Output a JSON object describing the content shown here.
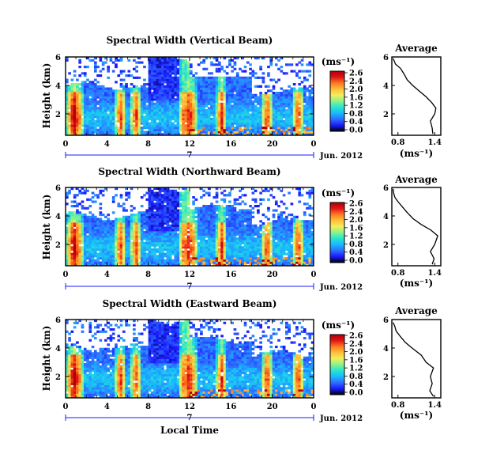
{
  "chart_data": {
    "type": "heatmap",
    "xlabel": "Local Time",
    "date_label": "Jun. 2012",
    "day_label": "7",
    "x_ticks": [
      "0",
      "4",
      "8",
      "12",
      "16",
      "20",
      "0"
    ],
    "y_ticks": [
      "6",
      "4",
      "2"
    ],
    "y_ticks_avg": [
      "6",
      "4",
      "2"
    ],
    "xlim_hours": [
      0,
      24
    ],
    "ylim_km": [
      0.5,
      6
    ],
    "colorbar": {
      "unit": "(ms⁻¹)",
      "ticks": [
        "2.6",
        "2.4",
        "2.0",
        "1.6",
        "1.2",
        "0.8",
        "0.4",
        "0.0"
      ],
      "range": [
        0,
        2.8
      ],
      "colors": [
        "#000000",
        "#1a1aff",
        "#2f6dff",
        "#19b8ff",
        "#25e6d0",
        "#8cf28c",
        "#f0f05a",
        "#ffbf3a",
        "#ff7a1f",
        "#e0151a",
        "#b00000"
      ]
    },
    "avg_panel": {
      "title": "Average",
      "x_ticks": [
        "0.8",
        "1.4"
      ],
      "xlabel": "(ms⁻¹)",
      "xlim": [
        0.7,
        1.5
      ],
      "ylim": [
        0.5,
        6
      ]
    },
    "panels": [
      {
        "title": "Spectral Width (Vertical Beam)",
        "ylabel": "Height (km)",
        "avg_profile": [
          [
            1.37,
            0.6
          ],
          [
            1.36,
            1.0
          ],
          [
            1.33,
            1.5
          ],
          [
            1.4,
            2.0
          ],
          [
            1.42,
            2.4
          ],
          [
            1.35,
            2.8
          ],
          [
            1.26,
            3.2
          ],
          [
            1.15,
            3.6
          ],
          [
            1.04,
            4.0
          ],
          [
            0.95,
            4.4
          ],
          [
            0.9,
            4.8
          ],
          [
            0.84,
            5.2
          ],
          [
            0.76,
            5.5
          ],
          [
            0.74,
            5.7
          ],
          [
            0.72,
            5.9
          ]
        ]
      },
      {
        "title": "Spectral Width (Northward Beam)",
        "ylabel": "Height (km)",
        "avg_profile": [
          [
            1.36,
            0.6
          ],
          [
            1.39,
            1.0
          ],
          [
            1.33,
            1.5
          ],
          [
            1.4,
            2.0
          ],
          [
            1.45,
            2.6
          ],
          [
            1.34,
            3.0
          ],
          [
            1.18,
            3.4
          ],
          [
            1.05,
            3.8
          ],
          [
            0.96,
            4.2
          ],
          [
            0.88,
            4.6
          ],
          [
            0.8,
            5.0
          ],
          [
            0.75,
            5.3
          ],
          [
            0.73,
            5.6
          ],
          [
            0.72,
            5.9
          ]
        ]
      },
      {
        "title": "Spectral Width (Eastward Beam)",
        "ylabel": "Height (km)",
        "avg_profile": [
          [
            1.38,
            0.6
          ],
          [
            1.32,
            1.0
          ],
          [
            1.36,
            1.5
          ],
          [
            1.33,
            2.0
          ],
          [
            1.38,
            2.6
          ],
          [
            1.26,
            3.0
          ],
          [
            1.18,
            3.5
          ],
          [
            1.03,
            4.0
          ],
          [
            0.92,
            4.4
          ],
          [
            0.84,
            4.8
          ],
          [
            0.77,
            5.2
          ],
          [
            0.75,
            5.5
          ],
          [
            0.72,
            5.8
          ]
        ]
      }
    ]
  }
}
